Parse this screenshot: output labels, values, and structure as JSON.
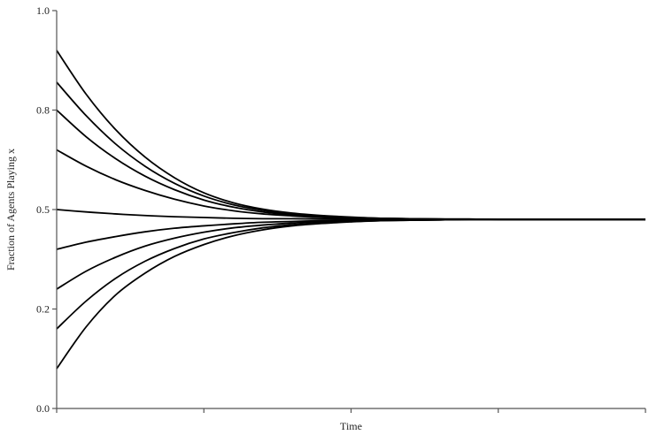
{
  "chart_data": {
    "type": "line",
    "title": "",
    "xlabel": "Time",
    "ylabel": "Fraction of Agents Playing x",
    "ylim": [
      0,
      1
    ],
    "xlim": [
      0,
      1
    ],
    "yticks": [
      "0.0",
      "0.2",
      "0.5",
      "0.8",
      "1.0"
    ],
    "ytick_values": [
      0,
      0.25,
      0.5,
      0.75,
      1
    ],
    "xticks_count": 5,
    "grid": false,
    "legend": false,
    "line_color": "#000000",
    "equilibrium": 0.475,
    "x": [
      0,
      0.05,
      0.1,
      0.15,
      0.2,
      0.25,
      0.3,
      0.35,
      0.4,
      0.45,
      0.5,
      0.55,
      0.6,
      0.65,
      0.7,
      0.75,
      0.8,
      0.85,
      0.9,
      0.95,
      1.0
    ],
    "series": [
      {
        "values": [
          0.9,
          0.79,
          0.701,
          0.632,
          0.58,
          0.542,
          0.517,
          0.501,
          0.491,
          0.485,
          0.481,
          0.478,
          0.477,
          0.476,
          0.476,
          0.475,
          0.475,
          0.475,
          0.475,
          0.475,
          0.475
        ]
      },
      {
        "values": [
          0.82,
          0.736,
          0.665,
          0.609,
          0.566,
          0.534,
          0.512,
          0.498,
          0.489,
          0.484,
          0.48,
          0.478,
          0.477,
          0.476,
          0.476,
          0.475,
          0.475,
          0.475,
          0.475,
          0.475,
          0.475
        ]
      },
      {
        "values": [
          0.75,
          0.683,
          0.628,
          0.584,
          0.55,
          0.524,
          0.506,
          0.494,
          0.487,
          0.482,
          0.479,
          0.478,
          0.477,
          0.476,
          0.475,
          0.475,
          0.475,
          0.475,
          0.475,
          0.475,
          0.475
        ]
      },
      {
        "values": [
          0.65,
          0.609,
          0.575,
          0.548,
          0.526,
          0.509,
          0.497,
          0.489,
          0.484,
          0.48,
          0.478,
          0.477,
          0.476,
          0.476,
          0.475,
          0.475,
          0.475,
          0.475,
          0.475,
          0.475,
          0.475
        ]
      },
      {
        "values": [
          0.5,
          0.494,
          0.489,
          0.485,
          0.482,
          0.48,
          0.478,
          0.477,
          0.477,
          0.476,
          0.476,
          0.476,
          0.475,
          0.475,
          0.475,
          0.475,
          0.475,
          0.475,
          0.475,
          0.475,
          0.475
        ]
      },
      {
        "values": [
          0.4,
          0.418,
          0.432,
          0.444,
          0.453,
          0.459,
          0.464,
          0.468,
          0.47,
          0.472,
          0.473,
          0.474,
          0.474,
          0.475,
          0.475,
          0.475,
          0.475,
          0.475,
          0.475,
          0.475,
          0.475
        ]
      },
      {
        "values": [
          0.3,
          0.345,
          0.38,
          0.408,
          0.428,
          0.443,
          0.454,
          0.461,
          0.466,
          0.47,
          0.472,
          0.473,
          0.474,
          0.474,
          0.475,
          0.475,
          0.475,
          0.475,
          0.475,
          0.475,
          0.475
        ]
      },
      {
        "values": [
          0.2,
          0.27,
          0.327,
          0.37,
          0.402,
          0.426,
          0.442,
          0.454,
          0.462,
          0.467,
          0.47,
          0.472,
          0.473,
          0.474,
          0.475,
          0.475,
          0.475,
          0.475,
          0.475,
          0.475,
          0.475
        ]
      },
      {
        "values": [
          0.1,
          0.205,
          0.285,
          0.34,
          0.382,
          0.412,
          0.434,
          0.449,
          0.459,
          0.465,
          0.469,
          0.472,
          0.473,
          0.474,
          0.475,
          0.475,
          0.475,
          0.475,
          0.475,
          0.475,
          0.475
        ]
      }
    ]
  }
}
